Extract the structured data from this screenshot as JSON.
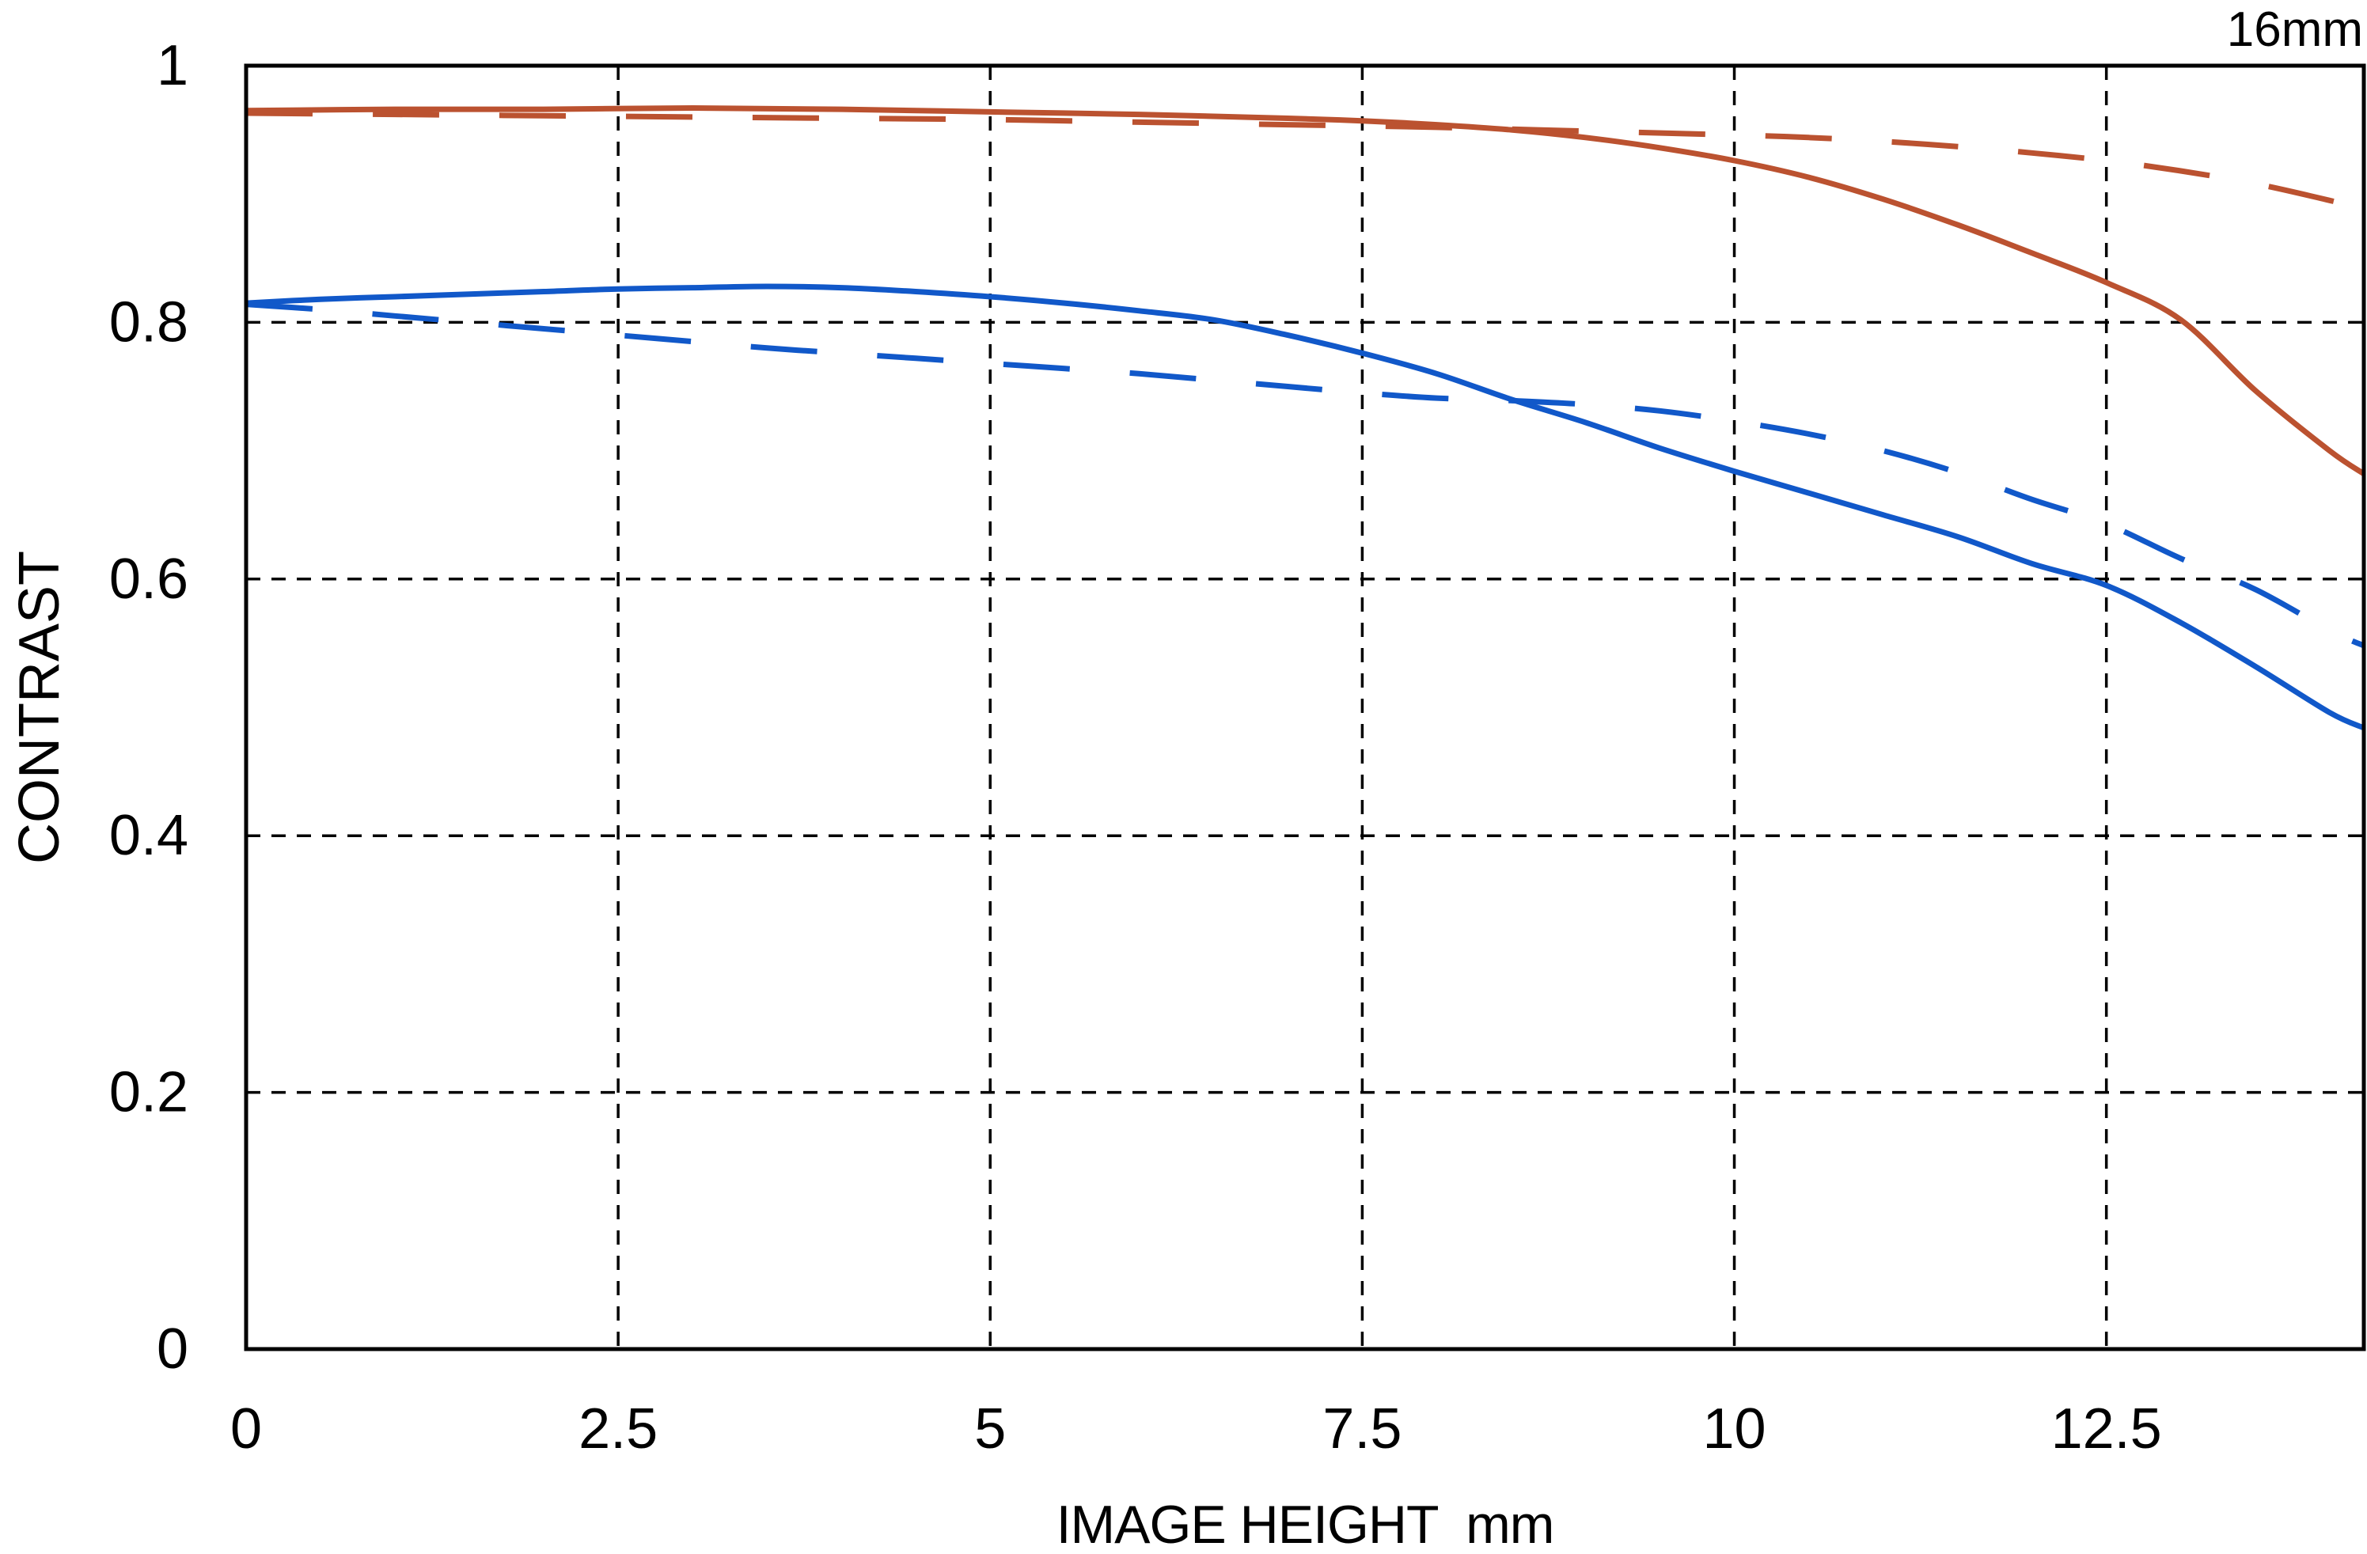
{
  "page": {
    "background": "#ffffff",
    "text_color": "#000000"
  },
  "chart_data": {
    "type": "line",
    "corner_label": "16mm",
    "xlabel": "IMAGE HEIGHT  mm",
    "ylabel": "CONTRAST",
    "xlim": [
      0,
      14.23
    ],
    "ylim": [
      0,
      1
    ],
    "x_ticks": [
      0,
      2.5,
      5,
      7.5,
      10,
      12.5
    ],
    "x_tick_labels": [
      "0",
      "2.5",
      "5",
      "7.5",
      "10",
      "12.5"
    ],
    "y_ticks": [
      0,
      0.2,
      0.4,
      0.6,
      0.8,
      1
    ],
    "y_tick_labels": [
      "0",
      "0.2",
      "0.4",
      "0.6",
      "0.8",
      "1"
    ],
    "grid": {
      "show": true,
      "style": "dashed-dotted",
      "color": "#000000"
    },
    "axis_color": "#000000",
    "colors": {
      "red": "#bb5230",
      "blue": "#1158c9"
    },
    "legend_position": "none",
    "series": [
      {
        "name": "red-solid",
        "color": "#bb5230",
        "line_style": "solid",
        "points": [
          [
            0,
            0.965
          ],
          [
            1,
            0.966
          ],
          [
            2,
            0.966
          ],
          [
            3,
            0.967
          ],
          [
            4,
            0.966
          ],
          [
            5,
            0.964
          ],
          [
            6,
            0.962
          ],
          [
            7,
            0.959
          ],
          [
            7.5,
            0.957
          ],
          [
            8,
            0.954
          ],
          [
            8.5,
            0.95
          ],
          [
            9,
            0.944
          ],
          [
            9.5,
            0.936
          ],
          [
            10,
            0.926
          ],
          [
            10.5,
            0.913
          ],
          [
            11,
            0.896
          ],
          [
            11.5,
            0.876
          ],
          [
            12,
            0.854
          ],
          [
            12.5,
            0.831
          ],
          [
            13,
            0.802
          ],
          [
            13.5,
            0.747
          ],
          [
            14,
            0.7
          ],
          [
            14.23,
            0.682
          ]
        ]
      },
      {
        "name": "red-dashed",
        "color": "#bb5230",
        "line_style": "dashed",
        "points": [
          [
            0,
            0.963
          ],
          [
            1,
            0.962
          ],
          [
            2,
            0.961
          ],
          [
            3,
            0.96
          ],
          [
            4,
            0.959
          ],
          [
            5,
            0.958
          ],
          [
            6,
            0.956
          ],
          [
            7,
            0.954
          ],
          [
            8,
            0.952
          ],
          [
            9,
            0.949
          ],
          [
            10,
            0.946
          ],
          [
            10.5,
            0.944
          ],
          [
            11,
            0.941
          ],
          [
            11.5,
            0.937
          ],
          [
            12,
            0.932
          ],
          [
            12.5,
            0.926
          ],
          [
            13,
            0.918
          ],
          [
            13.5,
            0.908
          ],
          [
            14,
            0.895
          ],
          [
            14.23,
            0.888
          ]
        ]
      },
      {
        "name": "blue-solid",
        "color": "#1158c9",
        "line_style": "solid",
        "points": [
          [
            0,
            0.815
          ],
          [
            0.5,
            0.818
          ],
          [
            1,
            0.82
          ],
          [
            1.5,
            0.822
          ],
          [
            2,
            0.824
          ],
          [
            2.5,
            0.826
          ],
          [
            3,
            0.827
          ],
          [
            3.5,
            0.828
          ],
          [
            4,
            0.827
          ],
          [
            4.5,
            0.824
          ],
          [
            5,
            0.82
          ],
          [
            5.5,
            0.815
          ],
          [
            6,
            0.809
          ],
          [
            6.5,
            0.802
          ],
          [
            7,
            0.79
          ],
          [
            7.5,
            0.776
          ],
          [
            8,
            0.76
          ],
          [
            8.5,
            0.74
          ],
          [
            9,
            0.722
          ],
          [
            9.5,
            0.702
          ],
          [
            10,
            0.684
          ],
          [
            10.5,
            0.667
          ],
          [
            11,
            0.65
          ],
          [
            11.5,
            0.633
          ],
          [
            12,
            0.612
          ],
          [
            12.5,
            0.595
          ],
          [
            13,
            0.566
          ],
          [
            13.5,
            0.532
          ],
          [
            14,
            0.496
          ],
          [
            14.23,
            0.484
          ]
        ]
      },
      {
        "name": "blue-dashed",
        "color": "#1158c9",
        "line_style": "dashed",
        "points": [
          [
            0,
            0.814
          ],
          [
            0.5,
            0.81
          ],
          [
            1,
            0.805
          ],
          [
            1.5,
            0.8
          ],
          [
            2,
            0.795
          ],
          [
            2.5,
            0.79
          ],
          [
            3,
            0.785
          ],
          [
            3.5,
            0.78
          ],
          [
            4,
            0.776
          ],
          [
            4.5,
            0.772
          ],
          [
            5,
            0.768
          ],
          [
            5.5,
            0.764
          ],
          [
            6,
            0.76
          ],
          [
            6.5,
            0.755
          ],
          [
            7,
            0.75
          ],
          [
            7.5,
            0.745
          ],
          [
            8,
            0.741
          ],
          [
            8.5,
            0.739
          ],
          [
            9,
            0.736
          ],
          [
            9.5,
            0.731
          ],
          [
            10,
            0.723
          ],
          [
            10.5,
            0.713
          ],
          [
            11,
            0.7
          ],
          [
            11.5,
            0.683
          ],
          [
            12,
            0.662
          ],
          [
            12.5,
            0.643
          ],
          [
            13,
            0.616
          ],
          [
            13.5,
            0.592
          ],
          [
            14,
            0.56
          ],
          [
            14.23,
            0.548
          ]
        ]
      }
    ]
  }
}
